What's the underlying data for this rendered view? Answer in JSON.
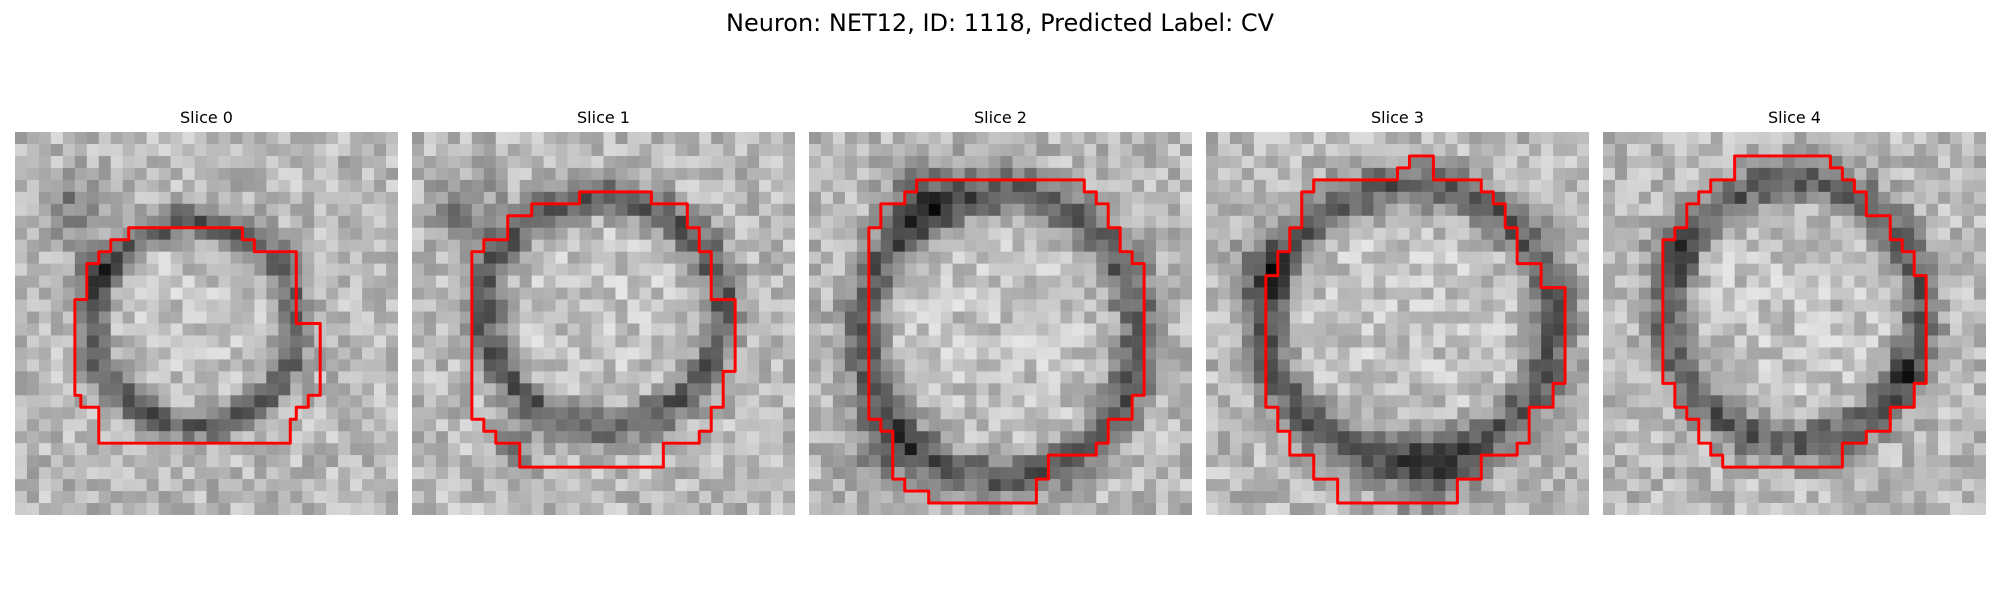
{
  "figure": {
    "title": "Neuron: NET12, ID: 1118, Predicted Label: CV",
    "outline_color": "#ff0000"
  },
  "slices": [
    {
      "title": "Slice 0"
    },
    {
      "title": "Slice 1"
    },
    {
      "title": "Slice 2"
    },
    {
      "title": "Slice 3"
    },
    {
      "title": "Slice 4"
    }
  ]
}
